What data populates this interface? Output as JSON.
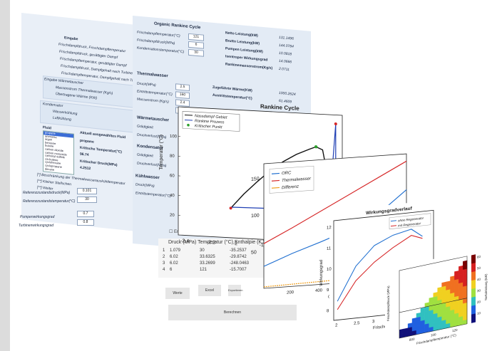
{
  "left_panel": {
    "eingabe_title": "Eingabe",
    "eingabe_rows": [
      "Frischdampfdruck, Frischdampftemperatur",
      "Frischdampfdruck, gesättigter Dampf",
      "Frischdampftemperatur, gesättigter Dampf",
      "Frischdampfdruck, Dampfgehalt nach Turbine",
      "Frischdampftemperatur, Dampfgehalt nach Turbine"
    ],
    "waermetauscher_title": "Eingabe Wärmetauscher",
    "waermetauscher_rows": [
      "Massenstrom Thermalwasser (Kg/s)",
      "Übertragene Wärme (KW)"
    ],
    "kondensator_title": "Kondensator",
    "kondensator_rows": [
      "Wasserkühlung",
      "Luftkühlung"
    ],
    "fluid_title": "Fluid",
    "fluid_list": [
      "propane",
      "ammonia",
      "argon",
      "benzene",
      "butane",
      "carbon dioxide",
      "carbon monoxide",
      "carbonyl sulfide",
      "cis-butene",
      "cyclohexane",
      "cyclopropane",
      "decane"
    ],
    "auswahl_title": "Aktuell ausgewähltes Fluid",
    "auswahl_fluid": "propane",
    "krit_temp_label": "Kritische Temperatur(°C)",
    "krit_temp_value": "96.74",
    "krit_druck_label": "Kritischer Druck(MPa)",
    "krit_druck_value": "4.2512",
    "notes": [
      "[*] Beschränkung der Thermalwasserauskühltemperatur",
      "[**] Kleiner Stellschen",
      "[**] Weiter"
    ],
    "ref_druck_label": "Referenzzustandsdruck(MPa)",
    "ref_druck_value": "0.101",
    "ref_temp_label": "Referenzzustandstemperatur(°C)",
    "ref_temp_value": "30",
    "pumpe_label": "Pumpenwirkungsgrad",
    "pumpe_value": "0.7",
    "turbine_label": "Turbinenwirkungsgrad",
    "turbine_value": "0.8"
  },
  "center_panel": {
    "orc_title": "Organic Rankine Cycle",
    "orc_inputs": [
      {
        "label": "Frischdampftemperatur(°C)",
        "value": "121"
      },
      {
        "label": "Frischdampfdruck(MPa)",
        "value": "6"
      },
      {
        "label": "Kondensationstemperatur(°C)",
        "value": "30"
      }
    ],
    "orc_outputs": [
      {
        "label": "Netto Leistung(kW)",
        "value": "131.1496"
      },
      {
        "label": "Brutto Leistung(kW)",
        "value": "144.0784"
      },
      {
        "label": "Pumpen Leistung(kW)",
        "value": "10.0818"
      },
      {
        "label": "Isentroper Wirkungsgrad",
        "value": "14.0666"
      },
      {
        "label": "Rankinemassenstrom(Kg/s)",
        "value": "2.0711"
      }
    ],
    "thermal_title": "Thermalwasser",
    "thermal_inputs": [
      {
        "label": "Druck(MPa)",
        "value": "2.5"
      },
      {
        "label": "Eintrittstemperatur(°C)",
        "value": "160"
      },
      {
        "label": "Massenstrom (Kg/s)",
        "value": "2.4"
      },
      {
        "label": "",
        "value": "149"
      }
    ],
    "thermal_outputs": [
      {
        "label": "Zugeführte Wärme(KW)",
        "value": "1000.2624"
      },
      {
        "label": "Austrittstemperatur(°C)",
        "value": "61.4609"
      }
    ],
    "wt_title": "Wärmetauscher",
    "wt_rows": [
      "Grädigkeit",
      "Druckverlust(MPa)"
    ],
    "kond_title": "Kondensator",
    "kond_rows": [
      "Grädigkeit",
      "Druckverlust(MPa)"
    ],
    "kuehl_title": "Kühlwasser",
    "kuehl_rows": [
      "Druck(MPa)",
      "Eintrittstemperatur(°C)"
    ],
    "checkbox_label": "Entropie",
    "table_headers": [
      "Druck (MPa)",
      "Temperatur (°C)",
      "Enthalpie (KJ/Kg)"
    ],
    "table_rows": [
      {
        "index": "1",
        "values": [
          "1.079",
          "30",
          "-35.2537"
        ]
      },
      {
        "index": "2",
        "values": [
          "6.02",
          "33.6325",
          "-29.8742"
        ]
      },
      {
        "index": "3",
        "values": [
          "6.02",
          "33.2699",
          "-248.0463"
        ]
      },
      {
        "index": "4",
        "values": [
          "6",
          "121",
          "-15.7007"
        ]
      }
    ],
    "buttons": [
      "Werte",
      "Excel",
      "Exportieren"
    ],
    "berechnen_label": "Berechnen"
  },
  "chart_ts": {
    "title": "Rankine Cycle",
    "ylabel": "Temperatur (°C)",
    "xlabel": "Entropie",
    "legend": [
      "Nassdampf Gebiet",
      "Rankine Prozess",
      "Kritischer Punkt"
    ],
    "y_ticks": [
      "100",
      "80",
      "60",
      "40",
      "20"
    ],
    "x_ticks": [
      "-2.4",
      "-2.2",
      "-2",
      "-1.8",
      "-1.6"
    ],
    "colors": {
      "dome": "#111111",
      "process": "#1f3fb4",
      "critical": "#2ca02c"
    }
  },
  "chart_data": [
    {
      "type": "line",
      "title": "Rankine Cycle",
      "xlabel": "Entropie",
      "ylabel": "Temperatur (°C)",
      "ylim": [
        0,
        120
      ],
      "series": [
        {
          "name": "Nassdampf Gebiet",
          "x": [
            -2.05,
            -1.95,
            -1.85,
            -1.75,
            -1.65,
            -1.55,
            -1.45,
            -1.4,
            -1.35,
            -1.3
          ],
          "y": [
            30,
            45,
            58,
            70,
            80,
            88,
            94,
            96.7,
            94,
            60
          ]
        },
        {
          "name": "Rankine Prozess",
          "x": [
            -2.05,
            -2.04,
            -1.3,
            -1.25,
            -1.25
          ],
          "y": [
            30,
            31,
            33,
            121,
            30
          ]
        }
      ],
      "critical_point": {
        "name": "Kritischer Punkt",
        "x": -1.4,
        "y": 96.74
      }
    },
    {
      "type": "line",
      "title": "",
      "xlabel": "Q_ (kW)",
      "ylabel": "",
      "ylim": [
        0,
        160
      ],
      "series": [
        {
          "name": "ORC",
          "x": [
            0,
            200,
            400,
            600,
            800,
            1000
          ],
          "y": [
            30,
            45,
            58,
            72,
            90,
            121
          ]
        },
        {
          "name": "Thermalwasser",
          "x": [
            0,
            200,
            400,
            600,
            800,
            1000
          ],
          "y": [
            61,
            80,
            100,
            120,
            140,
            160
          ]
        },
        {
          "name": "Differenz",
          "x": [
            0,
            200,
            400,
            600,
            800,
            1000
          ],
          "y": [
            2,
            3,
            4,
            5,
            6,
            7
          ]
        }
      ]
    },
    {
      "type": "line",
      "title": "Wirkungsgradverlauf",
      "xlabel": "Frischdampfdruck",
      "ylabel": "Wirkungsgrad",
      "ylim": [
        8,
        12
      ],
      "series": [
        {
          "name": "ohne Regenerator",
          "x": [
            2,
            2.5,
            3,
            3.5,
            4,
            4.3
          ],
          "y": [
            8.4,
            10.0,
            10.9,
            11.3,
            11.5,
            11.1
          ]
        },
        {
          "name": "mit Regenerator",
          "x": [
            2,
            2.5,
            3,
            3.5,
            4,
            4.3
          ],
          "y": [
            8.0,
            9.3,
            10.1,
            10.7,
            11.2,
            11.0
          ]
        }
      ]
    },
    {
      "type": "heatmap",
      "title": "",
      "xlabel": "Frischdampftemperatur (°C)",
      "ylabel": "Frischdampfdruck (MPa)",
      "colorbar_label": "Nettoleistung (kW)",
      "colorbar_ticks": [
        "60",
        "50",
        "40",
        "30",
        "20",
        "10"
      ]
    }
  ],
  "chart_qt": {
    "legend": [
      "ORC",
      "Thermalwasser",
      "Differenz"
    ],
    "xlabel": "Q_ (kW)",
    "x_ticks": [
      "200",
      "400",
      "600",
      "800"
    ],
    "y_ticks": [
      "150",
      "100",
      "50"
    ],
    "colors": {
      "orc": "#1f6fd0",
      "thermal": "#d62728",
      "diff": "#f0a020"
    }
  },
  "chart_eff": {
    "title": "Wirkungsgradverlauf",
    "legend": [
      "ohne Regenerator",
      "mit Regenerator"
    ],
    "ylabel": "Wirkungsgrad",
    "xlabel": "Frischdampfdruck",
    "y_ticks": [
      "12",
      "11",
      "10",
      "9",
      "8"
    ],
    "x_ticks": [
      "2",
      "2.5",
      "3",
      "3.5",
      "4"
    ],
    "colors": {
      "ohne": "#1f6fd0",
      "mit": "#d62728"
    }
  },
  "chart_heat": {
    "ylabel": "Frischdampfdruck (MPa)",
    "xlabel": "Frischdampftemperatur (°C)",
    "colorbar_label": "Nettoleistung (kW)",
    "colorbar_ticks": [
      "60",
      "50",
      "40",
      "30",
      "20",
      "10"
    ],
    "x_ticks": [
      "800",
      "100",
      "120"
    ]
  }
}
